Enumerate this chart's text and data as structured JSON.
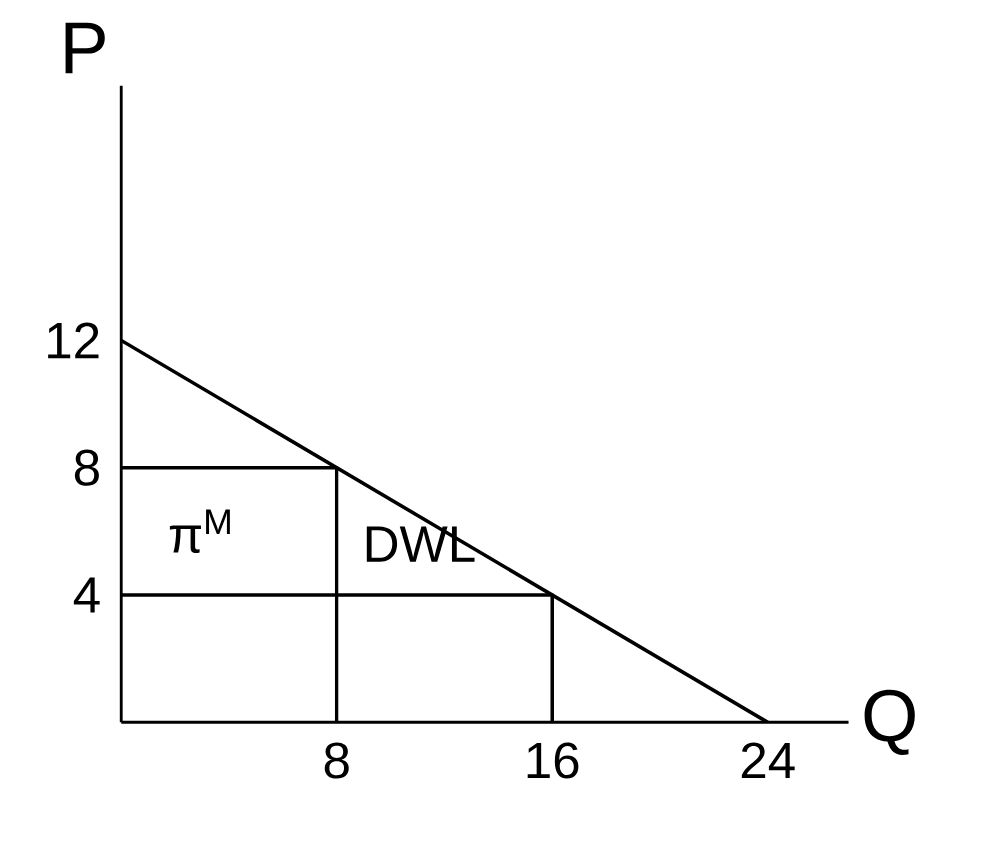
{
  "chart_data": {
    "type": "line",
    "xlabel": "Q",
    "ylabel": "P",
    "xlim": [
      0,
      27
    ],
    "ylim": [
      0,
      20
    ],
    "xticks": [
      8,
      16,
      24
    ],
    "yticks": [
      4,
      8,
      12
    ],
    "series": [
      {
        "x": [
          0,
          24
        ],
        "values": [
          12,
          0
        ],
        "color": "#000000"
      },
      {
        "x": [
          0,
          8,
          8
        ],
        "values": [
          8,
          8,
          0
        ],
        "color": "#000000"
      },
      {
        "x": [
          0,
          16,
          16
        ],
        "values": [
          4,
          4,
          0
        ],
        "color": "#000000"
      }
    ],
    "annotations": [
      "π$^{M}$",
      "DWL"
    ],
    "marker": "none",
    "line_style": "solid",
    "grid": false
  }
}
